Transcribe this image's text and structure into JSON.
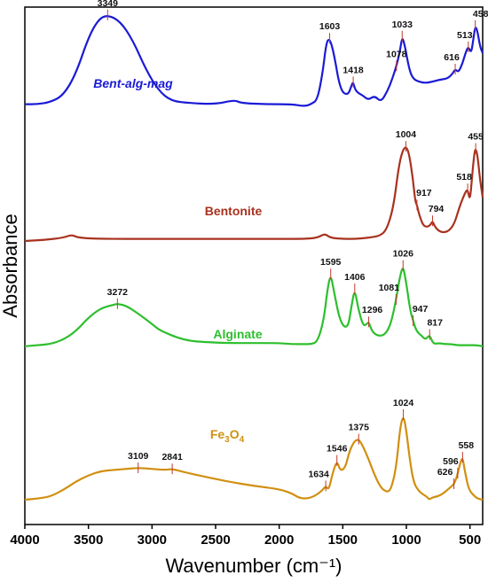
{
  "chart_data": {
    "type": "line",
    "xlabel": "Wavenumber (cm⁻¹)",
    "ylabel": "Absorbance",
    "xlim": [
      4000,
      400
    ],
    "x_reversed": true,
    "xticks": [
      4000,
      3500,
      3000,
      2500,
      2000,
      1500,
      1000,
      500
    ],
    "grid": false,
    "series": [
      {
        "name": "Bent-alg-mag",
        "color": "#1a1ad6",
        "label_italic": true,
        "points": [
          [
            4000,
            0.12
          ],
          [
            3900,
            0.12
          ],
          [
            3800,
            0.14
          ],
          [
            3700,
            0.2
          ],
          [
            3600,
            0.4
          ],
          [
            3500,
            0.75
          ],
          [
            3420,
            0.92
          ],
          [
            3349,
            0.96
          ],
          [
            3250,
            0.9
          ],
          [
            3150,
            0.72
          ],
          [
            3050,
            0.45
          ],
          [
            2950,
            0.25
          ],
          [
            2850,
            0.15
          ],
          [
            2700,
            0.13
          ],
          [
            2500,
            0.12
          ],
          [
            2350,
            0.16
          ],
          [
            2300,
            0.13
          ],
          [
            2100,
            0.12
          ],
          [
            1900,
            0.12
          ],
          [
            1800,
            0.1
          ],
          [
            1750,
            0.12
          ],
          [
            1700,
            0.16
          ],
          [
            1660,
            0.4
          ],
          [
            1630,
            0.7
          ],
          [
            1603,
            0.74
          ],
          [
            1570,
            0.6
          ],
          [
            1520,
            0.25
          ],
          [
            1460,
            0.2
          ],
          [
            1430,
            0.3
          ],
          [
            1418,
            0.33
          ],
          [
            1400,
            0.24
          ],
          [
            1340,
            0.2
          ],
          [
            1300,
            0.16
          ],
          [
            1250,
            0.2
          ],
          [
            1200,
            0.14
          ],
          [
            1150,
            0.24
          ],
          [
            1110,
            0.36
          ],
          [
            1078,
            0.48
          ],
          [
            1050,
            0.62
          ],
          [
            1033,
            0.76
          ],
          [
            1010,
            0.66
          ],
          [
            980,
            0.46
          ],
          [
            950,
            0.36
          ],
          [
            900,
            0.33
          ],
          [
            850,
            0.32
          ],
          [
            800,
            0.33
          ],
          [
            740,
            0.35
          ],
          [
            680,
            0.36
          ],
          [
            640,
            0.4
          ],
          [
            616,
            0.45
          ],
          [
            590,
            0.42
          ],
          [
            560,
            0.5
          ],
          [
            530,
            0.62
          ],
          [
            513,
            0.66
          ],
          [
            490,
            0.6
          ],
          [
            475,
            0.72
          ],
          [
            458,
            0.86
          ],
          [
            440,
            0.8
          ],
          [
            420,
            0.66
          ],
          [
            400,
            0.6
          ]
        ],
        "peaks": [
          3349,
          1603,
          1418,
          1078,
          1033,
          616,
          513,
          458
        ]
      },
      {
        "name": "Bentonite",
        "color": "#a8321f",
        "label_italic": false,
        "points": [
          [
            4000,
            0.05
          ],
          [
            3850,
            0.06
          ],
          [
            3700,
            0.08
          ],
          [
            3630,
            0.11
          ],
          [
            3580,
            0.08
          ],
          [
            3400,
            0.07
          ],
          [
            3000,
            0.07
          ],
          [
            2500,
            0.07
          ],
          [
            2000,
            0.07
          ],
          [
            1800,
            0.07
          ],
          [
            1700,
            0.08
          ],
          [
            1640,
            0.12
          ],
          [
            1600,
            0.08
          ],
          [
            1500,
            0.07
          ],
          [
            1400,
            0.07
          ],
          [
            1300,
            0.08
          ],
          [
            1200,
            0.1
          ],
          [
            1150,
            0.17
          ],
          [
            1100,
            0.38
          ],
          [
            1060,
            0.75
          ],
          [
            1030,
            0.9
          ],
          [
            1004,
            0.94
          ],
          [
            980,
            0.88
          ],
          [
            950,
            0.65
          ],
          [
            930,
            0.42
          ],
          [
            917,
            0.39
          ],
          [
            900,
            0.3
          ],
          [
            870,
            0.2
          ],
          [
            840,
            0.18
          ],
          [
            810,
            0.2
          ],
          [
            794,
            0.24
          ],
          [
            775,
            0.18
          ],
          [
            740,
            0.14
          ],
          [
            700,
            0.13
          ],
          [
            660,
            0.15
          ],
          [
            620,
            0.22
          ],
          [
            580,
            0.38
          ],
          [
            540,
            0.5
          ],
          [
            518,
            0.54
          ],
          [
            500,
            0.42
          ],
          [
            480,
            0.7
          ],
          [
            465,
            0.88
          ],
          [
            455,
            0.92
          ],
          [
            440,
            0.85
          ],
          [
            420,
            0.62
          ],
          [
            400,
            0.46
          ]
        ],
        "peaks": [
          1004,
          917,
          794,
          518,
          455
        ]
      },
      {
        "name": "Alginate",
        "color": "#2dbf2d",
        "label_italic": false,
        "points": [
          [
            4000,
            0.06
          ],
          [
            3900,
            0.07
          ],
          [
            3800,
            0.08
          ],
          [
            3700,
            0.12
          ],
          [
            3600,
            0.2
          ],
          [
            3500,
            0.33
          ],
          [
            3400,
            0.42
          ],
          [
            3300,
            0.45
          ],
          [
            3272,
            0.46
          ],
          [
            3200,
            0.44
          ],
          [
            3100,
            0.36
          ],
          [
            3000,
            0.27
          ],
          [
            2950,
            0.22
          ],
          [
            2900,
            0.19
          ],
          [
            2800,
            0.14
          ],
          [
            2700,
            0.11
          ],
          [
            2600,
            0.1
          ],
          [
            2400,
            0.09
          ],
          [
            2200,
            0.09
          ],
          [
            2000,
            0.09
          ],
          [
            1900,
            0.08
          ],
          [
            1800,
            0.08
          ],
          [
            1750,
            0.08
          ],
          [
            1700,
            0.1
          ],
          [
            1650,
            0.3
          ],
          [
            1620,
            0.6
          ],
          [
            1595,
            0.74
          ],
          [
            1570,
            0.58
          ],
          [
            1520,
            0.28
          ],
          [
            1460,
            0.22
          ],
          [
            1430,
            0.45
          ],
          [
            1406,
            0.6
          ],
          [
            1380,
            0.42
          ],
          [
            1340,
            0.25
          ],
          [
            1310,
            0.27
          ],
          [
            1296,
            0.29
          ],
          [
            1270,
            0.2
          ],
          [
            1230,
            0.16
          ],
          [
            1180,
            0.16
          ],
          [
            1140,
            0.22
          ],
          [
            1110,
            0.33
          ],
          [
            1081,
            0.5
          ],
          [
            1050,
            0.72
          ],
          [
            1026,
            0.82
          ],
          [
            1000,
            0.65
          ],
          [
            970,
            0.4
          ],
          [
            947,
            0.3
          ],
          [
            920,
            0.2
          ],
          [
            880,
            0.16
          ],
          [
            850,
            0.12
          ],
          [
            817,
            0.17
          ],
          [
            790,
            0.08
          ],
          [
            740,
            0.09
          ],
          [
            700,
            0.08
          ],
          [
            650,
            0.08
          ],
          [
            600,
            0.07
          ],
          [
            550,
            0.07
          ],
          [
            500,
            0.07
          ],
          [
            450,
            0.07
          ],
          [
            400,
            0.06
          ]
        ],
        "peaks": [
          3272,
          1595,
          1406,
          1296,
          1081,
          1026,
          947,
          817
        ]
      },
      {
        "name": "Fe3O4",
        "color": "#d18f10",
        "label_italic": false,
        "points": [
          [
            4000,
            0.05
          ],
          [
            3900,
            0.06
          ],
          [
            3800,
            0.08
          ],
          [
            3700,
            0.14
          ],
          [
            3600,
            0.22
          ],
          [
            3500,
            0.28
          ],
          [
            3400,
            0.32
          ],
          [
            3300,
            0.33
          ],
          [
            3200,
            0.34
          ],
          [
            3109,
            0.35
          ],
          [
            3000,
            0.34
          ],
          [
            2900,
            0.33
          ],
          [
            2841,
            0.34
          ],
          [
            2750,
            0.31
          ],
          [
            2600,
            0.27
          ],
          [
            2400,
            0.22
          ],
          [
            2200,
            0.18
          ],
          [
            2000,
            0.15
          ],
          [
            1900,
            0.11
          ],
          [
            1850,
            0.07
          ],
          [
            1800,
            0.06
          ],
          [
            1750,
            0.07
          ],
          [
            1700,
            0.1
          ],
          [
            1660,
            0.14
          ],
          [
            1634,
            0.18
          ],
          [
            1610,
            0.14
          ],
          [
            1580,
            0.3
          ],
          [
            1546,
            0.42
          ],
          [
            1520,
            0.32
          ],
          [
            1480,
            0.35
          ],
          [
            1450,
            0.5
          ],
          [
            1410,
            0.6
          ],
          [
            1375,
            0.62
          ],
          [
            1340,
            0.55
          ],
          [
            1300,
            0.44
          ],
          [
            1250,
            0.28
          ],
          [
            1200,
            0.16
          ],
          [
            1150,
            0.12
          ],
          [
            1120,
            0.15
          ],
          [
            1080,
            0.35
          ],
          [
            1050,
            0.72
          ],
          [
            1024,
            0.85
          ],
          [
            1000,
            0.7
          ],
          [
            970,
            0.4
          ],
          [
            940,
            0.2
          ],
          [
            900,
            0.13
          ],
          [
            870,
            0.1
          ],
          [
            840,
            0.08
          ],
          [
            820,
            0.05
          ],
          [
            800,
            0.07
          ],
          [
            760,
            0.08
          ],
          [
            720,
            0.1
          ],
          [
            680,
            0.14
          ],
          [
            640,
            0.18
          ],
          [
            626,
            0.2
          ],
          [
            610,
            0.24
          ],
          [
            596,
            0.3
          ],
          [
            575,
            0.4
          ],
          [
            558,
            0.45
          ],
          [
            540,
            0.32
          ],
          [
            520,
            0.2
          ],
          [
            500,
            0.13
          ],
          [
            470,
            0.09
          ],
          [
            440,
            0.06
          ],
          [
            400,
            0.05
          ]
        ],
        "peaks": [
          3109,
          2841,
          1634,
          1546,
          1375,
          1024,
          626,
          596,
          558
        ]
      }
    ]
  }
}
